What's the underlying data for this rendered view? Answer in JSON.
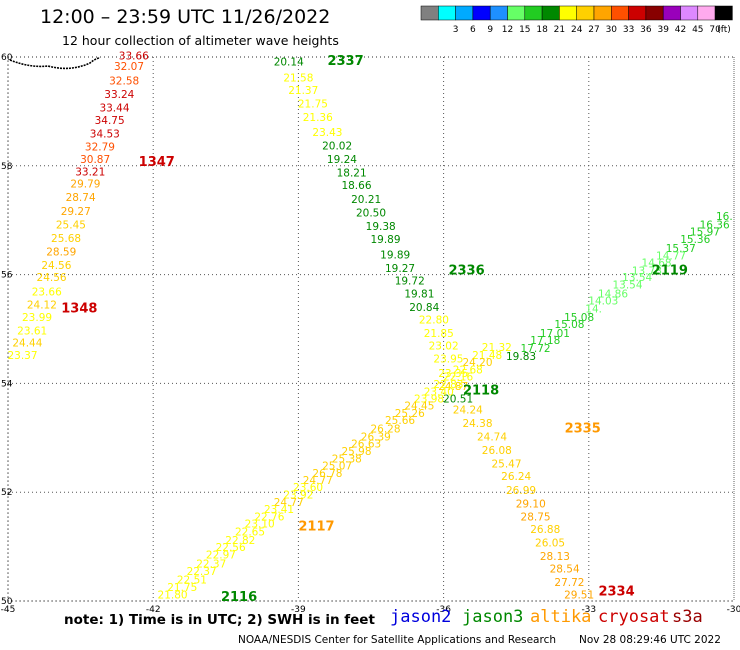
{
  "header": {
    "title": "12:00 – 23:59 UTC 11/26/2022",
    "subtitle": "12 hour collection of altimeter wave heights"
  },
  "color_scale": {
    "unit": "(ft)",
    "bins": [
      {
        "color": "#808080",
        "label": ""
      },
      {
        "color": "#00ffff",
        "label": "3"
      },
      {
        "color": "#00aaff",
        "label": "6"
      },
      {
        "color": "#0000ff",
        "label": "9"
      },
      {
        "color": "#1e90ff",
        "label": "12"
      },
      {
        "color": "#66ff66",
        "label": "15"
      },
      {
        "color": "#22cc22",
        "label": "18"
      },
      {
        "color": "#008800",
        "label": "21"
      },
      {
        "color": "#ffff00",
        "label": "24"
      },
      {
        "color": "#ffd000",
        "label": "27"
      },
      {
        "color": "#ffa500",
        "label": "30"
      },
      {
        "color": "#ff5000",
        "label": "33"
      },
      {
        "color": "#cc0000",
        "label": "36"
      },
      {
        "color": "#880000",
        "label": "39"
      },
      {
        "color": "#9900bb",
        "label": "42"
      },
      {
        "color": "#dd88ff",
        "label": "45"
      },
      {
        "color": "#ffaaee",
        "label": "70"
      },
      {
        "color": "#000000",
        "label": ""
      }
    ]
  },
  "chart_data": {
    "type": "scatter",
    "title": "12:00 – 23:59 UTC 11/26/2022",
    "subtitle": "12 hour collection of altimeter wave heights",
    "xlim": [
      -45,
      -30
    ],
    "ylim": [
      50,
      60
    ],
    "x_ticks": [
      "-45",
      "-42",
      "-39",
      "-36",
      "-33",
      "-30"
    ],
    "y_ticks": [
      "50",
      "52",
      "54",
      "56",
      "58",
      "60"
    ],
    "grid": true,
    "tracks": [
      {
        "satellite": "cryosat",
        "time_label": "1347",
        "time_pos": [
          -42.3,
          58.0
        ],
        "points": [
          [
            -42.4,
            59.95,
            "33.66"
          ],
          [
            -42.5,
            59.76,
            "32.07"
          ],
          [
            -42.6,
            59.49,
            "32.58"
          ],
          [
            -42.7,
            59.25,
            "33.24"
          ],
          [
            -42.8,
            59.0,
            "33.44"
          ],
          [
            -42.9,
            58.77,
            "34.75"
          ],
          [
            -43.0,
            58.52,
            "34.53"
          ],
          [
            -43.1,
            58.28,
            "32.79"
          ],
          [
            -43.2,
            58.05,
            "30.87"
          ],
          [
            -43.3,
            57.82,
            "33.21"
          ]
        ]
      },
      {
        "satellite": "cryosat",
        "time_label": "1348",
        "time_pos": [
          -43.9,
          55.3
        ],
        "points": [
          [
            -43.4,
            57.6,
            "29.79"
          ],
          [
            -43.5,
            57.35,
            "28.74"
          ],
          [
            -43.6,
            57.1,
            "29.27"
          ],
          [
            -43.7,
            56.85,
            "25.45"
          ],
          [
            -43.8,
            56.6,
            "25.68"
          ],
          [
            -43.9,
            56.35,
            "28.59"
          ],
          [
            -44.0,
            56.1,
            "24.56"
          ],
          [
            -44.1,
            55.88,
            "24.56"
          ],
          [
            -44.2,
            55.62,
            "23.66"
          ],
          [
            -44.3,
            55.38,
            "24.12"
          ],
          [
            -44.4,
            55.15,
            "23.99"
          ],
          [
            -44.5,
            54.9,
            "23.61"
          ],
          [
            -44.6,
            54.68,
            "24.44"
          ],
          [
            -44.7,
            54.45,
            "23.37"
          ]
        ]
      },
      {
        "satellite": "jason3",
        "time_label": "2337",
        "time_pos": [
          -38.4,
          59.85
        ],
        "points": [
          [
            -39.2,
            59.84,
            "20.14"
          ],
          [
            -39.0,
            59.55,
            "21.58"
          ],
          [
            -38.9,
            59.32,
            "21.37"
          ],
          [
            -38.7,
            59.07,
            "21.75"
          ],
          [
            -38.6,
            58.82,
            "21.36"
          ],
          [
            -38.4,
            58.55,
            "23.43"
          ],
          [
            -38.2,
            58.3,
            "20.02"
          ],
          [
            -38.1,
            58.05,
            "19.24"
          ],
          [
            -37.9,
            57.8,
            "18.21"
          ],
          [
            -37.8,
            57.57,
            "18.66"
          ],
          [
            -37.6,
            57.32,
            "20.21"
          ],
          [
            -37.5,
            57.07,
            "20.50"
          ],
          [
            -37.3,
            56.82,
            "19.38"
          ],
          [
            -37.2,
            56.58,
            "19.89"
          ],
          [
            -37.0,
            56.3,
            "19.89"
          ],
          [
            -36.9,
            56.05,
            "19.27"
          ],
          [
            -36.7,
            55.82,
            "19.72"
          ],
          [
            -36.5,
            55.58,
            "19.81"
          ],
          [
            -36.4,
            55.33,
            "20.84"
          ]
        ]
      },
      {
        "satellite": "jason3",
        "time_label": "2336",
        "time_pos": [
          -35.9,
          56.0
        ],
        "points": [
          [
            -36.2,
            55.1,
            "22.80"
          ],
          [
            -36.1,
            54.85,
            "21.85"
          ],
          [
            -36.0,
            54.62,
            "23.02"
          ],
          [
            -35.9,
            54.38,
            "23.95"
          ],
          [
            -35.8,
            54.12,
            "23.35"
          ],
          [
            -35.8,
            53.88,
            "24.87"
          ],
          [
            -35.7,
            53.65,
            "20.51"
          ]
        ]
      },
      {
        "satellite": "altika",
        "time_label": "2335",
        "time_pos": [
          -33.5,
          53.1
        ],
        "points": [
          [
            -35.5,
            53.45,
            "24.24"
          ],
          [
            -35.3,
            53.2,
            "24.38"
          ],
          [
            -35.0,
            52.95,
            "24.74"
          ],
          [
            -34.9,
            52.7,
            "26.08"
          ],
          [
            -34.7,
            52.45,
            "25.47"
          ],
          [
            -34.5,
            52.22,
            "26.24"
          ],
          [
            -34.4,
            51.97,
            "26.99"
          ],
          [
            -34.2,
            51.72,
            "29.10"
          ],
          [
            -34.1,
            51.48,
            "28.75"
          ],
          [
            -33.9,
            51.25,
            "26.88"
          ],
          [
            -33.8,
            51.0,
            "26.05"
          ],
          [
            -33.7,
            50.75,
            "28.13"
          ],
          [
            -33.5,
            50.52,
            "28.54"
          ],
          [
            -33.4,
            50.28,
            "27.72"
          ],
          [
            -33.2,
            50.05,
            "29.51"
          ]
        ]
      },
      {
        "satellite": "cryosat",
        "time_label": "2334",
        "time_pos": [
          -32.8,
          50.1
        ],
        "points": []
      },
      {
        "satellite": "jason3",
        "time_label": "2119",
        "time_pos": [
          -31.7,
          56.0
        ],
        "points": [
          [
            -30.2,
            57.0,
            "16."
          ],
          [
            -30.4,
            56.85,
            "16.36"
          ],
          [
            -30.6,
            56.72,
            "15.97"
          ],
          [
            -30.8,
            56.58,
            "15.36"
          ],
          [
            -31.1,
            56.42,
            "15.37"
          ],
          [
            -31.3,
            56.28,
            "14.77"
          ],
          [
            -31.6,
            56.15,
            "14.68"
          ],
          [
            -31.8,
            56.0,
            "13.78"
          ],
          [
            -32.0,
            55.88,
            "13.54"
          ],
          [
            -32.2,
            55.74,
            "13.54"
          ],
          [
            -32.5,
            55.58,
            "14.86"
          ],
          [
            -32.7,
            55.45,
            "14.03"
          ],
          [
            -32.9,
            55.3,
            "14."
          ],
          [
            -33.2,
            55.15,
            "15.08"
          ],
          [
            -33.4,
            55.02,
            "15.08"
          ],
          [
            -33.7,
            54.85,
            "17.01"
          ],
          [
            -33.9,
            54.72,
            "17.18"
          ],
          [
            -34.1,
            54.58,
            "17.72"
          ],
          [
            -34.4,
            54.43,
            "19.83"
          ]
        ]
      },
      {
        "satellite": "jason3",
        "time_label": "2118",
        "time_pos": [
          -35.6,
          53.8
        ],
        "points": [
          [
            -34.9,
            54.6,
            "21.32"
          ],
          [
            -35.1,
            54.45,
            "21.48"
          ],
          [
            -35.3,
            54.32,
            "24.20"
          ],
          [
            -35.5,
            54.18,
            "22.68"
          ],
          [
            -35.7,
            54.05,
            "22.16"
          ],
          [
            -35.9,
            53.92,
            "22.83"
          ],
          [
            -36.1,
            53.78,
            "23.40"
          ],
          [
            -36.3,
            53.65,
            "23.98"
          ],
          [
            -36.5,
            53.52,
            "24.45"
          ],
          [
            -36.7,
            53.38,
            "25.26"
          ],
          [
            -36.9,
            53.25,
            "25.66"
          ]
        ]
      },
      {
        "satellite": "altika",
        "time_label": "2117",
        "time_pos": [
          -39.0,
          51.3
        ],
        "points": [
          [
            -37.2,
            53.1,
            "26.28"
          ],
          [
            -37.4,
            52.95,
            "26.39"
          ],
          [
            -37.6,
            52.82,
            "26.63"
          ],
          [
            -37.8,
            52.68,
            "25.98"
          ],
          [
            -38.0,
            52.55,
            "25.38"
          ],
          [
            -38.2,
            52.42,
            "25.07"
          ],
          [
            -38.4,
            52.28,
            "26.78"
          ],
          [
            -38.6,
            52.15,
            "24.77"
          ],
          [
            -38.8,
            52.02,
            "23.60"
          ],
          [
            -39.0,
            51.88,
            "23.92"
          ],
          [
            -39.2,
            51.75,
            "24.77"
          ],
          [
            -39.4,
            51.62,
            "23.41"
          ],
          [
            -39.6,
            51.48,
            "22.76"
          ],
          [
            -39.8,
            51.35,
            "23.10"
          ]
        ]
      },
      {
        "satellite": "jason3",
        "time_label": "2116",
        "time_pos": [
          -40.6,
          50.0
        ],
        "points": [
          [
            -40.0,
            51.2,
            "22.65"
          ],
          [
            -40.2,
            51.05,
            "22.82"
          ],
          [
            -40.4,
            50.92,
            "22.56"
          ],
          [
            -40.6,
            50.78,
            "22.97"
          ],
          [
            -40.8,
            50.62,
            "22.37"
          ],
          [
            -41.0,
            50.48,
            "22.37"
          ],
          [
            -41.2,
            50.32,
            "22.51"
          ],
          [
            -41.4,
            50.18,
            "21.75"
          ],
          [
            -41.6,
            50.05,
            "21.80"
          ]
        ]
      }
    ]
  },
  "footer": {
    "note": "note:  1) Time is in UTC;  2) SWH is in feet",
    "satellites": [
      {
        "name": "jason2",
        "color": "#0000dd"
      },
      {
        "name": "jason3",
        "color": "#008800"
      },
      {
        "name": "altika",
        "color": "#ff9900"
      },
      {
        "name": "cryosat",
        "color": "#cc0000"
      },
      {
        "name": "s3a",
        "color": "#990000"
      }
    ],
    "credit": "NOAA/NESDIS Center for Satellite Applications and Research",
    "stamp": "Nov 28 08:29:46 UTC 2022"
  }
}
